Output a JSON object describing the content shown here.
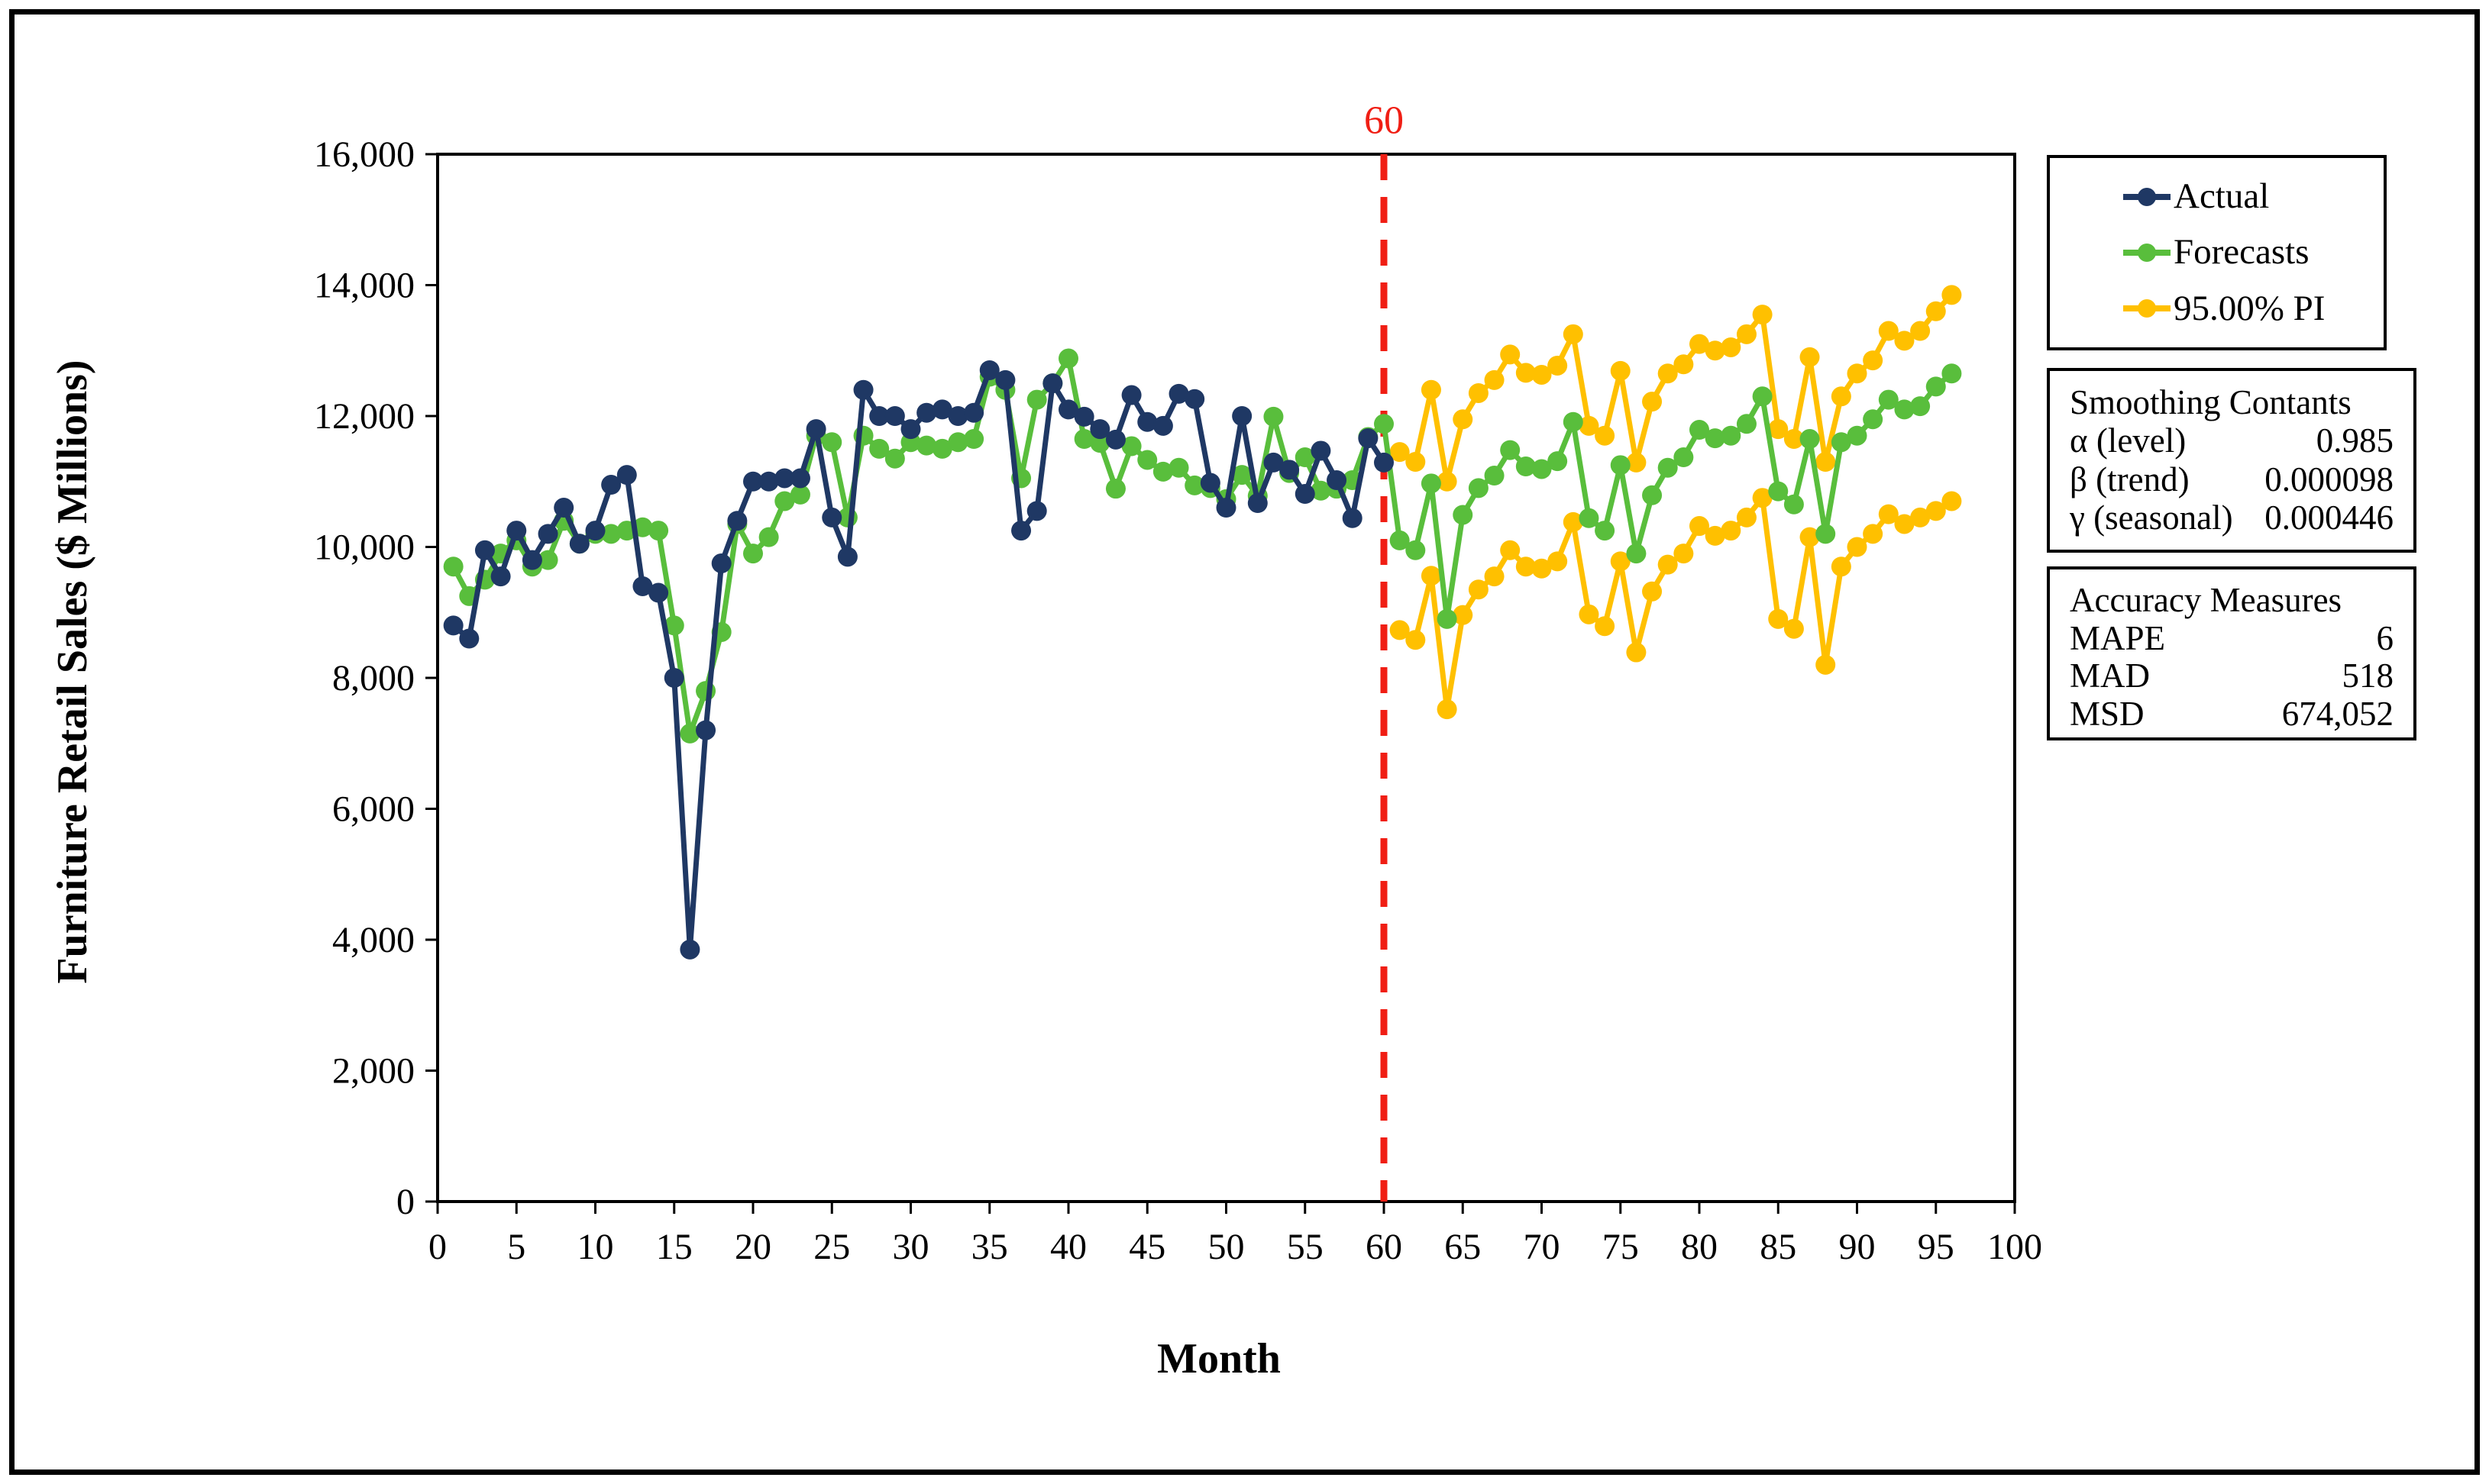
{
  "figure": {
    "cutoff_label": "60",
    "cutoff_color": "#F01E14"
  },
  "axes": {
    "x_title": "Month",
    "y_title": "Furniture Retail Sales ($ Millions)",
    "x_tick_labels": [
      "0",
      "5",
      "10",
      "15",
      "20",
      "25",
      "30",
      "35",
      "40",
      "45",
      "50",
      "55",
      "60",
      "65",
      "70",
      "75",
      "80",
      "85",
      "90",
      "95",
      "100"
    ],
    "x_tick_values": [
      0,
      5,
      10,
      15,
      20,
      25,
      30,
      35,
      40,
      45,
      50,
      55,
      60,
      65,
      70,
      75,
      80,
      85,
      90,
      95,
      100
    ],
    "y_tick_labels": [
      "0",
      "2,000",
      "4,000",
      "6,000",
      "8,000",
      "10,000",
      "12,000",
      "14,000",
      "16,000"
    ],
    "y_tick_values": [
      0,
      2000,
      4000,
      6000,
      8000,
      10000,
      12000,
      14000,
      16000
    ]
  },
  "legend": {
    "items": [
      {
        "label": "Actual",
        "color": "#1F3864"
      },
      {
        "label": "Forecasts",
        "color": "#59BE3C"
      },
      {
        "label": "95.00% PI",
        "color": "#FFC000"
      }
    ]
  },
  "boxes": {
    "smoothing": {
      "title": "Smoothing Contants",
      "rows": [
        {
          "label": "α (level)",
          "value": "0.985"
        },
        {
          "label": "β (trend)",
          "value": "0.000098"
        },
        {
          "label": "γ (seasonal)",
          "value": "0.000446"
        }
      ]
    },
    "accuracy": {
      "title": "Accuracy Measures",
      "rows": [
        {
          "label": "MAPE",
          "value": "6"
        },
        {
          "label": "MAD",
          "value": "518"
        },
        {
          "label": "MSD",
          "value": "674,052"
        }
      ]
    }
  },
  "chart_data": {
    "type": "line",
    "title": "",
    "xlabel": "Month",
    "ylabel": "Furniture Retail Sales ($ Millions)",
    "xlim": [
      0,
      100
    ],
    "ylim": [
      0,
      16000
    ],
    "grid": false,
    "legend_position": "right",
    "cutoff_x": 60,
    "series": [
      {
        "name": "95.00% PI upper",
        "color": "#FFC000",
        "x_start": 61,
        "values": [
          11450,
          11300,
          12400,
          11000,
          11950,
          12350,
          12550,
          12940,
          12660,
          12630,
          12770,
          13250,
          11850,
          11700,
          12690,
          11290,
          12220,
          12650,
          12790,
          13100,
          13000,
          13050,
          13250,
          13550,
          11800,
          11650,
          12900,
          11300,
          12300,
          12650,
          12850,
          13300,
          13150,
          13300,
          13600,
          13850
        ]
      },
      {
        "name": "95.00% PI lower",
        "color": "#FFC000",
        "x_start": 61,
        "values": [
          8730,
          8580,
          9560,
          7520,
          8960,
          9350,
          9550,
          9950,
          9700,
          9670,
          9780,
          10380,
          8970,
          8790,
          9780,
          8390,
          9320,
          9730,
          9900,
          10320,
          10170,
          10250,
          10450,
          10750,
          8900,
          8750,
          10150,
          8200,
          9700,
          10000,
          10200,
          10500,
          10350,
          10450,
          10550,
          10700
        ]
      },
      {
        "name": "Forecasts",
        "color": "#59BE3C",
        "x_start": 1,
        "values": [
          9700,
          9250,
          9500,
          9900,
          10100,
          9700,
          9800,
          10400,
          10050,
          10200,
          10200,
          10250,
          10300,
          10250,
          8800,
          7150,
          7800,
          8700,
          10350,
          9900,
          10150,
          10700,
          10800,
          11700,
          11600,
          10450,
          11700,
          11500,
          11350,
          11600,
          11550,
          11500,
          11600,
          11650,
          12600,
          12400,
          11050,
          12250,
          12500,
          12880,
          11650,
          11590,
          10890,
          11540,
          11330,
          11150,
          11210,
          10940,
          10900,
          10730,
          11100,
          10780,
          11990,
          11130,
          11370,
          10860,
          10890,
          11020,
          11680,
          11880,
          10100,
          9950,
          10970,
          8900,
          10490,
          10900,
          11090,
          11480,
          11230,
          11190,
          11310,
          11910,
          10440,
          10250,
          11250,
          9900,
          10790,
          11210,
          11370,
          11790,
          11660,
          11700,
          11880,
          12300,
          10850,
          10650,
          11650,
          10200,
          11600,
          11700,
          11950,
          12250,
          12100,
          12150,
          12450,
          12650
        ]
      },
      {
        "name": "Actual",
        "color": "#1F3864",
        "x_start": 1,
        "values": [
          8800,
          8600,
          9950,
          9550,
          10250,
          9800,
          10200,
          10600,
          10050,
          10250,
          10950,
          11100,
          9400,
          9300,
          8000,
          3850,
          7200,
          9750,
          10400,
          11000,
          11000,
          11050,
          11050,
          11800,
          10450,
          9850,
          12400,
          12000,
          12000,
          11800,
          12050,
          12100,
          12000,
          12050,
          12700,
          12550,
          10250,
          10550,
          12500,
          12100,
          11990,
          11800,
          11640,
          12320,
          11910,
          11850,
          12340,
          12260,
          10980,
          10600,
          12000,
          10670,
          11290,
          11180,
          10810,
          11470,
          11020,
          10440,
          11660,
          11290
        ]
      }
    ]
  }
}
